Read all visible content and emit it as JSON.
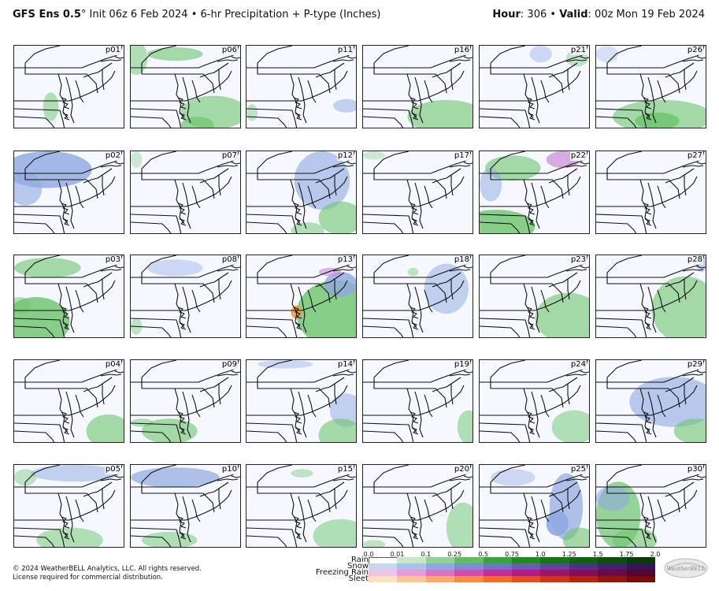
{
  "header": {
    "model": "GFS Ens 0.5",
    "degree": "°",
    "init": "Init 06z 6 Feb 2024",
    "bullet": "•",
    "product": "6-hr Precipitation + P-type (Inches)",
    "hour_label": "Hour",
    "hour_value": ": 306",
    "valid_label": "Valid",
    "valid_value": ": 00z Mon 19 Feb 2024"
  },
  "panels": [
    {
      "label": "p01",
      "blobs": [
        [
          "rain",
          0.33,
          0.73,
          0.07,
          0.17,
          0.5
        ]
      ]
    },
    {
      "label": "p06",
      "blobs": [
        [
          "rain",
          0.4,
          0.1,
          0.25,
          0.08,
          0.6
        ],
        [
          "rain",
          0.75,
          0.8,
          0.3,
          0.2,
          0.6
        ],
        [
          "rain",
          0.6,
          0.95,
          0.15,
          0.1,
          0.7
        ],
        [
          "rain",
          0.05,
          0.15,
          0.1,
          0.2,
          0.5
        ]
      ]
    },
    {
      "label": "p11",
      "blobs": [
        [
          "snow",
          0.9,
          0.72,
          0.12,
          0.08,
          0.5
        ],
        [
          "rain",
          0.05,
          0.8,
          0.05,
          0.1,
          0.4
        ]
      ]
    },
    {
      "label": "p16",
      "blobs": [
        [
          "rain",
          0.75,
          0.85,
          0.35,
          0.2,
          0.6
        ],
        [
          "snow",
          0.9,
          0.05,
          0.05,
          0.08,
          0.4
        ]
      ]
    },
    {
      "label": "p21",
      "blobs": [
        [
          "snow",
          0.55,
          0.1,
          0.1,
          0.1,
          0.4
        ],
        [
          "rain",
          0.88,
          0.15,
          0.1,
          0.1,
          0.4
        ]
      ]
    },
    {
      "label": "p26",
      "blobs": [
        [
          "rain",
          0.6,
          0.85,
          0.45,
          0.2,
          0.6
        ],
        [
          "rain",
          0.55,
          0.9,
          0.2,
          0.1,
          0.8
        ],
        [
          "snow",
          0.1,
          0.1,
          0.1,
          0.1,
          0.3
        ]
      ]
    },
    {
      "label": "p02",
      "blobs": [
        [
          "snow",
          0.3,
          0.22,
          0.4,
          0.22,
          0.8
        ],
        [
          "snow",
          0.1,
          0.45,
          0.15,
          0.2,
          0.6
        ]
      ]
    },
    {
      "label": "p07",
      "blobs": [
        [
          "rain",
          0.05,
          0.1,
          0.05,
          0.1,
          0.3
        ]
      ]
    },
    {
      "label": "p12",
      "blobs": [
        [
          "snow",
          0.68,
          0.35,
          0.25,
          0.35,
          0.6
        ],
        [
          "rain",
          0.85,
          0.8,
          0.2,
          0.2,
          0.6
        ],
        [
          "rain",
          0.55,
          0.95,
          0.15,
          0.1,
          0.5
        ]
      ]
    },
    {
      "label": "p17",
      "blobs": [
        [
          "rain",
          0.1,
          0.05,
          0.1,
          0.05,
          0.3
        ]
      ]
    },
    {
      "label": "p22",
      "blobs": [
        [
          "rain",
          0.3,
          0.2,
          0.25,
          0.15,
          0.6
        ],
        [
          "mix",
          0.75,
          0.1,
          0.15,
          0.1,
          0.7
        ],
        [
          "rain",
          0.15,
          0.9,
          0.35,
          0.2,
          0.8
        ],
        [
          "snow",
          0.1,
          0.4,
          0.1,
          0.2,
          0.5
        ]
      ]
    },
    {
      "label": "p27",
      "blobs": []
    },
    {
      "label": "p03",
      "blobs": [
        [
          "rain",
          0.3,
          0.15,
          0.3,
          0.12,
          0.6
        ],
        [
          "rain",
          0.2,
          0.8,
          0.3,
          0.3,
          0.8
        ],
        [
          "rain",
          0.05,
          0.6,
          0.1,
          0.1,
          0.5
        ]
      ]
    },
    {
      "label": "p08",
      "blobs": [
        [
          "snow",
          0.4,
          0.15,
          0.25,
          0.1,
          0.4
        ],
        [
          "rain",
          0.05,
          0.85,
          0.05,
          0.1,
          0.4
        ]
      ]
    },
    {
      "label": "p13",
      "blobs": [
        [
          "rain",
          0.8,
          0.7,
          0.35,
          0.4,
          0.8
        ],
        [
          "snow",
          0.85,
          0.35,
          0.15,
          0.15,
          0.8
        ],
        [
          "sleet",
          0.45,
          0.68,
          0.05,
          0.08,
          0.9
        ],
        [
          "mix",
          0.75,
          0.2,
          0.1,
          0.05,
          0.6
        ]
      ]
    },
    {
      "label": "p18",
      "blobs": [
        [
          "snow",
          0.75,
          0.4,
          0.2,
          0.3,
          0.5
        ],
        [
          "rain",
          0.45,
          0.2,
          0.05,
          0.05,
          0.4
        ]
      ]
    },
    {
      "label": "p23",
      "blobs": [
        [
          "rain",
          0.8,
          0.75,
          0.3,
          0.3,
          0.6
        ]
      ]
    },
    {
      "label": "p28",
      "blobs": [
        [
          "rain",
          0.8,
          0.65,
          0.3,
          0.4,
          0.6
        ],
        [
          "snow",
          0.95,
          0.1,
          0.05,
          0.1,
          0.5
        ]
      ]
    },
    {
      "label": "p04",
      "blobs": [
        [
          "rain",
          0.85,
          0.85,
          0.2,
          0.2,
          0.6
        ]
      ]
    },
    {
      "label": "p09",
      "blobs": [
        [
          "rain",
          0.35,
          0.85,
          0.25,
          0.15,
          0.6
        ],
        [
          "rain",
          0.1,
          0.75,
          0.1,
          0.05,
          0.5
        ]
      ]
    },
    {
      "label": "p14",
      "blobs": [
        [
          "snow",
          0.9,
          0.6,
          0.15,
          0.2,
          0.5
        ],
        [
          "rain",
          0.85,
          0.9,
          0.2,
          0.2,
          0.6
        ],
        [
          "snow",
          0.35,
          0.05,
          0.25,
          0.05,
          0.4
        ]
      ]
    },
    {
      "label": "p19",
      "blobs": [
        [
          "rain",
          0.95,
          0.8,
          0.1,
          0.2,
          0.5
        ]
      ]
    },
    {
      "label": "p24",
      "blobs": [
        [
          "rain",
          0.85,
          0.8,
          0.2,
          0.2,
          0.5
        ]
      ]
    },
    {
      "label": "p29",
      "blobs": [
        [
          "snow",
          0.7,
          0.5,
          0.4,
          0.3,
          0.6
        ],
        [
          "rain",
          0.9,
          0.85,
          0.2,
          0.15,
          0.6
        ]
      ]
    },
    {
      "label": "p05",
      "blobs": [
        [
          "snow",
          0.55,
          0.1,
          0.4,
          0.1,
          0.5
        ],
        [
          "rain",
          0.1,
          0.15,
          0.1,
          0.1,
          0.4
        ],
        [
          "rain",
          0.5,
          0.9,
          0.3,
          0.15,
          0.5
        ]
      ]
    },
    {
      "label": "p10",
      "blobs": [
        [
          "snow",
          0.4,
          0.15,
          0.4,
          0.12,
          0.7
        ],
        [
          "rain",
          0.35,
          0.9,
          0.25,
          0.1,
          0.5
        ]
      ]
    },
    {
      "label": "p15",
      "blobs": [
        [
          "rain",
          0.85,
          0.85,
          0.25,
          0.2,
          0.5
        ],
        [
          "rain",
          0.5,
          0.1,
          0.1,
          0.05,
          0.4
        ]
      ]
    },
    {
      "label": "p20",
      "blobs": [
        [
          "rain",
          0.9,
          0.75,
          0.15,
          0.3,
          0.5
        ],
        [
          "rain",
          0.1,
          0.95,
          0.1,
          0.05,
          0.4
        ]
      ]
    },
    {
      "label": "p25",
      "blobs": [
        [
          "snow",
          0.78,
          0.5,
          0.15,
          0.4,
          0.7
        ],
        [
          "snow",
          0.7,
          0.7,
          0.1,
          0.15,
          0.9
        ],
        [
          "rain",
          0.9,
          0.9,
          0.15,
          0.15,
          0.6
        ],
        [
          "snow",
          0.3,
          0.15,
          0.2,
          0.1,
          0.4
        ]
      ]
    },
    {
      "label": "p30",
      "blobs": [
        [
          "rain",
          0.2,
          0.6,
          0.2,
          0.4,
          0.7
        ],
        [
          "snow",
          0.15,
          0.4,
          0.15,
          0.15,
          0.6
        ],
        [
          "rain",
          0.35,
          0.9,
          0.2,
          0.15,
          0.6
        ]
      ]
    }
  ],
  "legend": {
    "ticks": [
      "0.0",
      "0.01",
      "0.1",
      "0.25",
      "0.5",
      "0.75",
      "1.0",
      "1.25",
      "1.5",
      "1.75",
      "2.0"
    ],
    "types": [
      {
        "name": "Rain",
        "colors": [
          "#ffffff",
          "#ffffff",
          "#c3e8c3",
          "#92d392",
          "#5fbf5f",
          "#34a834",
          "#1b8f1b",
          "#0f7a0f",
          "#0a650a",
          "#075107",
          "#053d05"
        ]
      },
      {
        "name": "Snow",
        "colors": [
          "#ffffff",
          "#c8d7ef",
          "#a9c1e8",
          "#8ea9dc",
          "#7a8ed0",
          "#6f75c2",
          "#6a5cb0",
          "#5e469b",
          "#503285",
          "#41226e",
          "#331559"
        ]
      },
      {
        "name": "Freezing Rain",
        "colors": [
          "#ffffff",
          "#f1c2e4",
          "#e89ad8",
          "#de70c8",
          "#d44ab6",
          "#c82a9f",
          "#b71a88",
          "#a1126f",
          "#880c58",
          "#6e0845",
          "#550433"
        ]
      },
      {
        "name": "Sleet",
        "colors": [
          "#ffffff",
          "#fde0c3",
          "#fcc597",
          "#fba86a",
          "#f88a42",
          "#f26c27",
          "#e54f1b",
          "#cf3714",
          "#b4240f",
          "#97160b",
          "#7a0c07"
        ]
      }
    ],
    "colors": {
      "rain": "#6cc46c",
      "snow": "#8fa8e0",
      "mix": "#c98ad6",
      "sleet": "#f2a04a"
    }
  },
  "footer": {
    "line1": "© 2024 WeatherBELL Analytics, LLC. All rights reserved.",
    "line2": "License required for commercial distribution."
  },
  "logo": {
    "icon": "weatherbell-logo-icon",
    "text": "WeatherBELL"
  }
}
